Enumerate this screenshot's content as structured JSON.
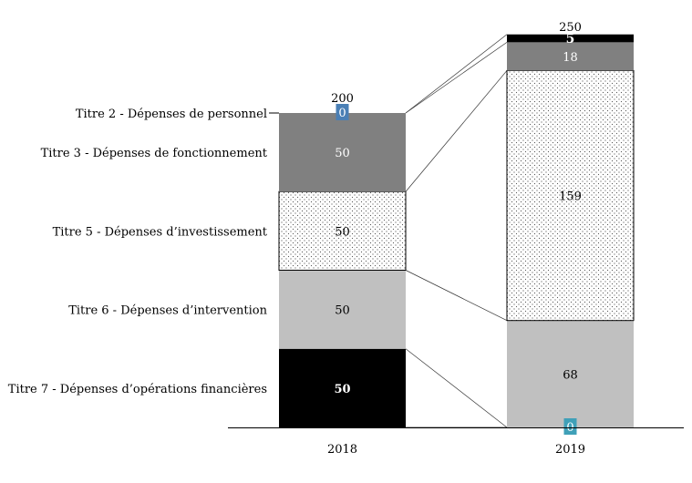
{
  "chart_data": {
    "type": "bar",
    "stacked": true,
    "categories": [
      "2018",
      "2019"
    ],
    "totals": [
      200,
      250
    ],
    "series": [
      {
        "name": "Titre 7 - Dépenses d’opérations financières",
        "values": [
          50,
          0
        ],
        "color": "#000000",
        "label_color": "#ffffff",
        "pattern": "solid"
      },
      {
        "name": "Titre 6 - Dépenses d’intervention",
        "values": [
          50,
          68
        ],
        "color": "#c0c0c0",
        "label_color": "#000000",
        "pattern": "solid"
      },
      {
        "name": "Titre 5 - Dépenses d’investissement",
        "values": [
          50,
          159
        ],
        "color": "#ffffff",
        "label_color": "#000000",
        "pattern": "dotted"
      },
      {
        "name": "Titre 3 - Dépenses de fonctionnement",
        "values": [
          50,
          18
        ],
        "color": "#808080",
        "label_color": "#ffffff",
        "pattern": "solid"
      },
      {
        "name": "Titre 2 - Dépenses de personnel",
        "values": [
          0,
          5
        ],
        "color": "#000000",
        "label_color": "#ffffff",
        "pattern": "solid"
      }
    ],
    "zero_badge_colors": [
      "#4a7fb5",
      "#3fa0b8"
    ],
    "connectors": true,
    "legend": "left",
    "grid": false
  }
}
